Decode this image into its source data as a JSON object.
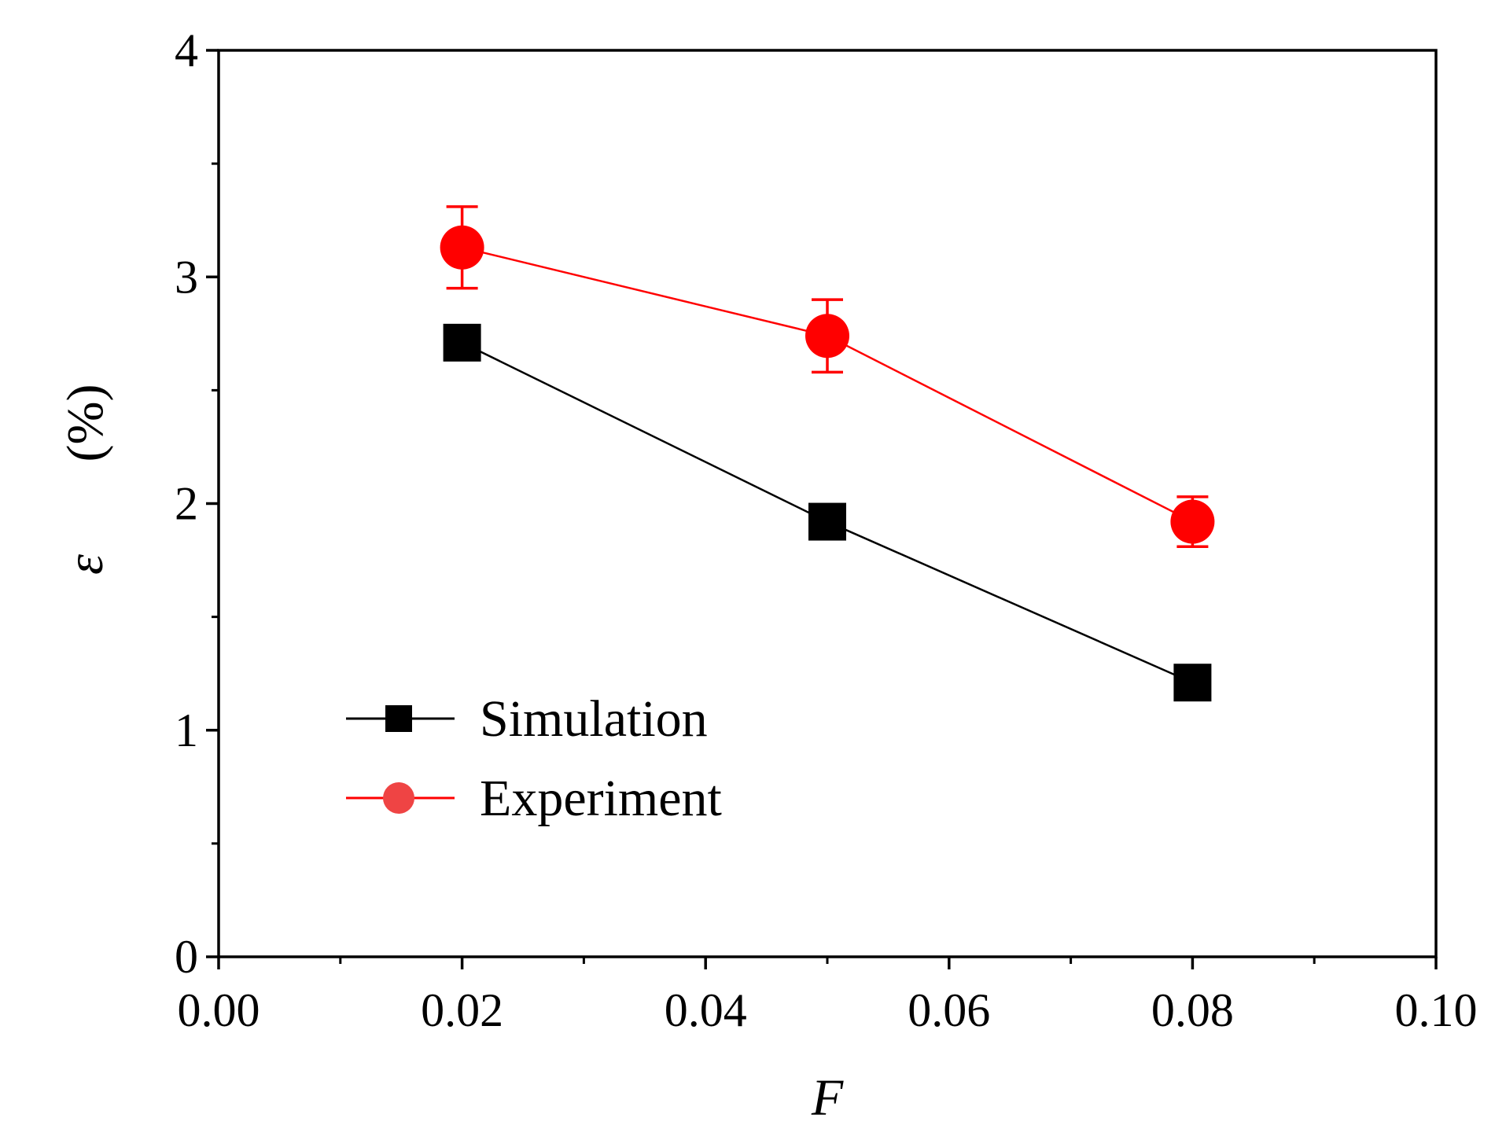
{
  "chart_data": {
    "type": "line",
    "title": "",
    "xlabel": "F",
    "ylabel": "ε",
    "ylabel_unit": "(%)",
    "xlim": [
      0,
      0.1
    ],
    "ylim": [
      0,
      4
    ],
    "x_ticks": [
      "0.00",
      "0.02",
      "0.04",
      "0.06",
      "0.08",
      "0.10"
    ],
    "y_ticks": [
      "0",
      "1",
      "2",
      "3",
      "4"
    ],
    "grid": false,
    "legend_position": "bottom-left",
    "series": [
      {
        "name": "Simulation",
        "color": "#000000",
        "marker": "square",
        "x": [
          0.02,
          0.05,
          0.08
        ],
        "y": [
          2.71,
          1.92,
          1.21
        ]
      },
      {
        "name": "Experiment",
        "color": "#ff0000",
        "marker": "circle",
        "x": [
          0.02,
          0.05,
          0.08
        ],
        "y": [
          3.13,
          2.74,
          1.92
        ],
        "error": [
          0.18,
          0.16,
          0.11
        ]
      }
    ]
  }
}
